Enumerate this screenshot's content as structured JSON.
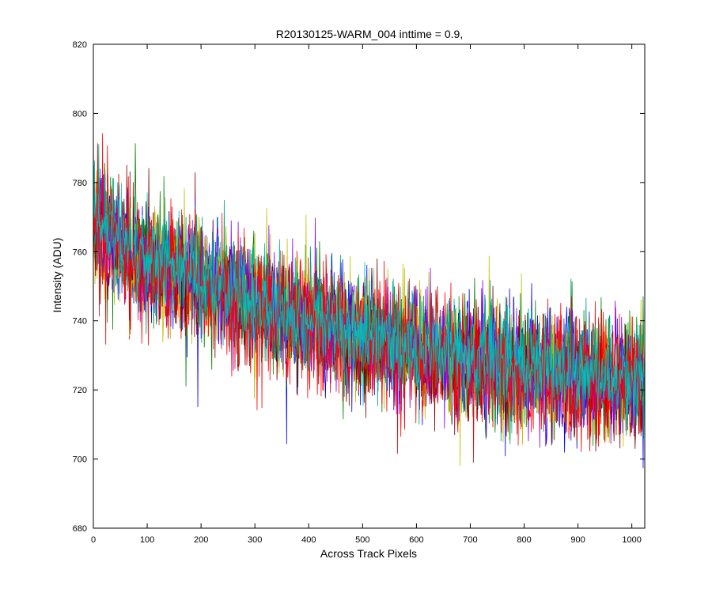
{
  "chart_data": {
    "type": "line",
    "title": "R20130125-WARM_004 inttime = 0.9,",
    "xlabel": "Across Track Pixels",
    "ylabel": "Intensity (ADU)",
    "xlim": [
      0,
      1024
    ],
    "ylim": [
      680,
      820
    ],
    "x_ticks": [
      0,
      100,
      200,
      300,
      400,
      500,
      600,
      700,
      800,
      900,
      1000
    ],
    "y_ticks": [
      680,
      700,
      720,
      740,
      760,
      780,
      800,
      820
    ],
    "grid": false,
    "legend": "none",
    "series": [
      {
        "color": "#0000ff",
        "values": [
          [
            0,
            770
          ],
          [
            50,
            762
          ],
          [
            100,
            757
          ],
          [
            200,
            751
          ],
          [
            300,
            745
          ],
          [
            400,
            740
          ],
          [
            500,
            735
          ],
          [
            600,
            731
          ],
          [
            700,
            728
          ],
          [
            800,
            726
          ],
          [
            900,
            724
          ],
          [
            1024,
            722
          ]
        ],
        "noise_amplitude": 9
      },
      {
        "color": "#008000",
        "values": [
          [
            0,
            771
          ],
          [
            50,
            763
          ],
          [
            100,
            758
          ],
          [
            200,
            752
          ],
          [
            300,
            746
          ],
          [
            400,
            741
          ],
          [
            500,
            736
          ],
          [
            600,
            732
          ],
          [
            700,
            729
          ],
          [
            800,
            727
          ],
          [
            900,
            725
          ],
          [
            1024,
            723
          ]
        ],
        "noise_amplitude": 9
      },
      {
        "color": "#ff0000",
        "values": [
          [
            0,
            769
          ],
          [
            50,
            762
          ],
          [
            100,
            756
          ],
          [
            200,
            750
          ],
          [
            300,
            744
          ],
          [
            400,
            739
          ],
          [
            500,
            734
          ],
          [
            600,
            730
          ],
          [
            700,
            727
          ],
          [
            800,
            725
          ],
          [
            900,
            723
          ],
          [
            1024,
            721
          ]
        ],
        "noise_amplitude": 9
      },
      {
        "color": "#00bfbf",
        "values": [
          [
            0,
            772
          ],
          [
            50,
            764
          ],
          [
            100,
            759
          ],
          [
            200,
            753
          ],
          [
            300,
            747
          ],
          [
            400,
            742
          ],
          [
            500,
            737
          ],
          [
            600,
            733
          ],
          [
            700,
            730
          ],
          [
            800,
            728
          ],
          [
            900,
            726
          ],
          [
            1024,
            724
          ]
        ],
        "noise_amplitude": 7
      },
      {
        "color": "#bfbf00",
        "values": [
          [
            0,
            770
          ],
          [
            50,
            762
          ],
          [
            100,
            757
          ],
          [
            200,
            751
          ],
          [
            300,
            745
          ],
          [
            400,
            740
          ],
          [
            500,
            735
          ],
          [
            600,
            731
          ],
          [
            700,
            728
          ],
          [
            800,
            726
          ],
          [
            900,
            724
          ],
          [
            1024,
            722
          ]
        ],
        "noise_amplitude": 9
      },
      {
        "color": "#800000",
        "values": [
          [
            0,
            768
          ],
          [
            50,
            761
          ],
          [
            100,
            756
          ],
          [
            200,
            750
          ],
          [
            300,
            744
          ],
          [
            400,
            739
          ],
          [
            500,
            734
          ],
          [
            600,
            730
          ],
          [
            700,
            727
          ],
          [
            800,
            725
          ],
          [
            900,
            723
          ],
          [
            1024,
            721
          ]
        ],
        "noise_amplitude": 8
      },
      {
        "color": "#8000ff",
        "values": [
          [
            0,
            769
          ],
          [
            50,
            762
          ],
          [
            100,
            757
          ],
          [
            200,
            751
          ],
          [
            300,
            745
          ],
          [
            400,
            740
          ],
          [
            500,
            735
          ],
          [
            600,
            731
          ],
          [
            700,
            728
          ],
          [
            800,
            726
          ],
          [
            900,
            724
          ],
          [
            1024,
            722
          ]
        ],
        "noise_amplitude": 8
      },
      {
        "color": "#00a080",
        "values": [
          [
            0,
            771
          ],
          [
            50,
            763
          ],
          [
            100,
            758
          ],
          [
            200,
            752
          ],
          [
            300,
            746
          ],
          [
            400,
            741
          ],
          [
            500,
            736
          ],
          [
            600,
            732
          ],
          [
            700,
            729
          ],
          [
            800,
            727
          ],
          [
            900,
            725
          ],
          [
            1024,
            723
          ]
        ],
        "noise_amplitude": 8
      },
      {
        "color": "#ff0000",
        "values": [
          [
            0,
            770
          ],
          [
            50,
            763
          ],
          [
            100,
            757
          ],
          [
            200,
            751
          ],
          [
            300,
            745
          ],
          [
            400,
            740
          ],
          [
            500,
            735
          ],
          [
            600,
            731
          ],
          [
            700,
            728
          ],
          [
            800,
            726
          ],
          [
            900,
            724
          ],
          [
            1024,
            722
          ]
        ],
        "noise_amplitude": 9
      },
      {
        "color": "#00bfbf",
        "values": [
          [
            0,
            771
          ],
          [
            50,
            763
          ],
          [
            100,
            758
          ],
          [
            200,
            752
          ],
          [
            300,
            746
          ],
          [
            400,
            741
          ],
          [
            500,
            736
          ],
          [
            600,
            732
          ],
          [
            700,
            729
          ],
          [
            800,
            727
          ],
          [
            900,
            725
          ],
          [
            1024,
            723
          ]
        ],
        "noise_amplitude": 6
      }
    ]
  }
}
